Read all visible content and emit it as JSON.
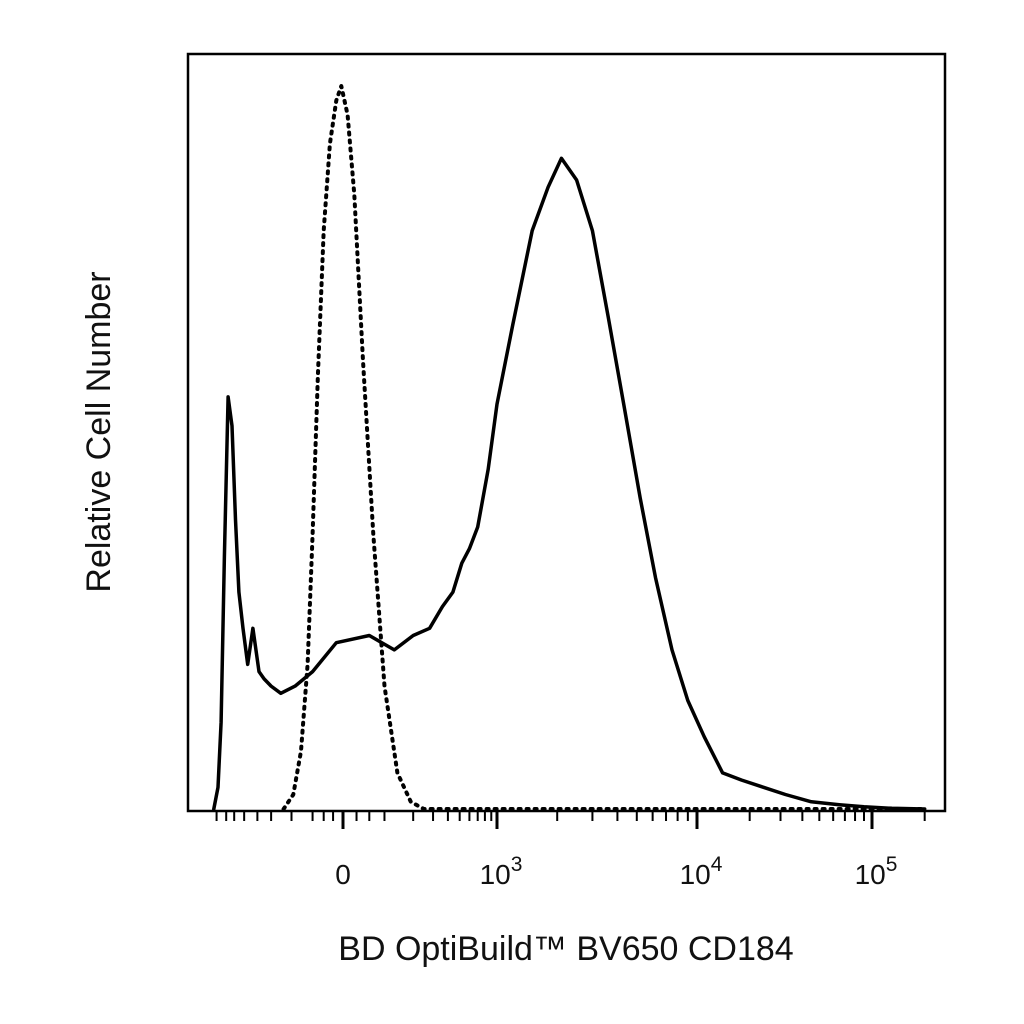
{
  "chart_data": {
    "type": "line",
    "xlabel": "BD OptiBuild™ BV650 CD184",
    "ylabel": "Relative Cell Number",
    "x_scale": "biexponential (linear near 0, log above)",
    "ylim": [
      0,
      100
    ],
    "x_ticks": [
      {
        "label": "0",
        "exp": ""
      },
      {
        "label": "10",
        "exp": "3"
      },
      {
        "label": "10",
        "exp": "4"
      },
      {
        "label": "10",
        "exp": "5"
      }
    ],
    "grid": false,
    "legend": "none",
    "series": [
      {
        "style": "dotted",
        "x": [
          -250,
          -190,
          -150,
          -120,
          -100,
          -80,
          -60,
          -40,
          -20,
          -5,
          10,
          25,
          45,
          70,
          100,
          140,
          190,
          250,
          10000,
          200000
        ],
        "y": [
          0,
          2,
          8,
          20,
          38,
          60,
          80,
          92,
          98,
          100,
          96,
          85,
          62,
          38,
          17,
          5,
          1,
          0,
          0,
          0
        ]
      },
      {
        "style": "solid",
        "x": [
          -1500,
          -1350,
          -1250,
          -1150,
          -1050,
          -950,
          -870,
          -800,
          -720,
          -640,
          -560,
          -480,
          -420,
          -350,
          -270,
          -180,
          -100,
          -20,
          60,
          130,
          200,
          280,
          360,
          440,
          520,
          600,
          700,
          850,
          1000,
          1200,
          1500,
          1800,
          2100,
          2500,
          3000,
          3600,
          4300,
          5200,
          6200,
          7500,
          9000,
          11000,
          14000,
          18000,
          24000,
          32000,
          45000,
          65000,
          90000,
          130000,
          200000
        ],
        "y": [
          0,
          3,
          12,
          35,
          57,
          53,
          40,
          30,
          25,
          20,
          25,
          19,
          18,
          17,
          16,
          17,
          19,
          23,
          24,
          22,
          24,
          25,
          28,
          30,
          34,
          36,
          39,
          47,
          56,
          67,
          80,
          86,
          90,
          87,
          80,
          68,
          56,
          43,
          32,
          22,
          15,
          10,
          5,
          4,
          3,
          2,
          1,
          0.6,
          0.3,
          0.1,
          0
        ]
      }
    ]
  }
}
